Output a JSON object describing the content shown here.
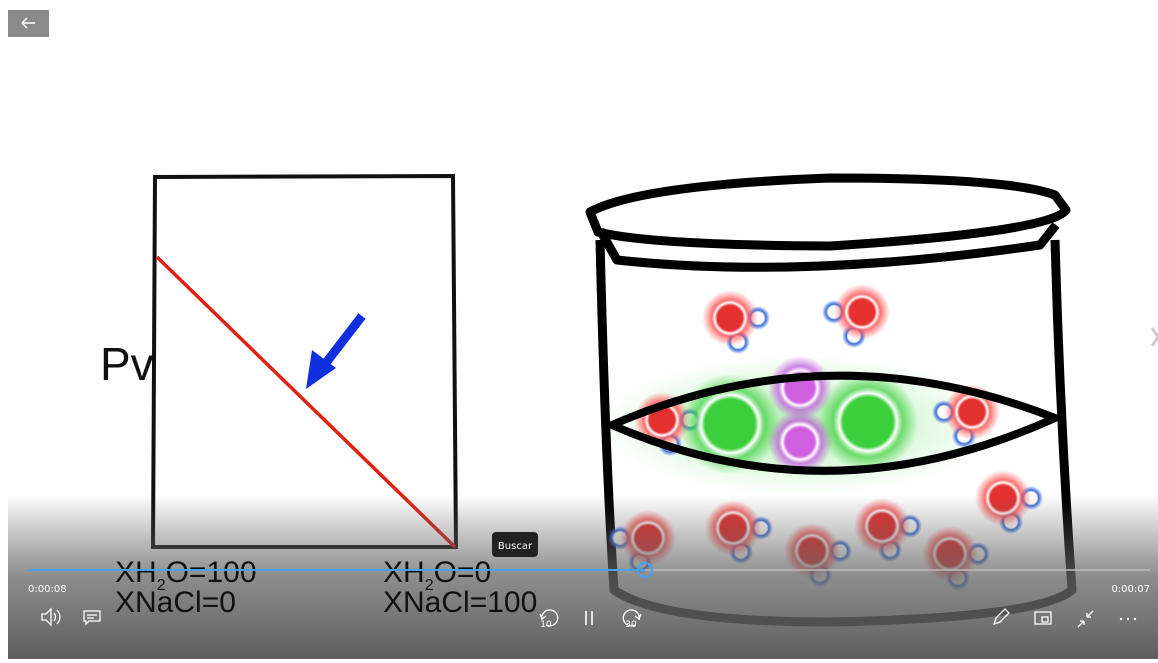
{
  "diagram": {
    "y_label": "Pv",
    "left_label": {
      "water": {
        "pre": "XH",
        "sub": "2",
        "post": "O=100"
      },
      "salt": "XNaCl=0"
    },
    "right_label": {
      "water": {
        "pre": "XH",
        "sub": "2",
        "post": "O=0"
      },
      "salt": "XNaCl=100"
    }
  },
  "player": {
    "tooltip": "Buscar",
    "elapsed": "0:00:08",
    "remaining": "0:00:07",
    "skip_back": "10",
    "skip_forward": "30"
  }
}
